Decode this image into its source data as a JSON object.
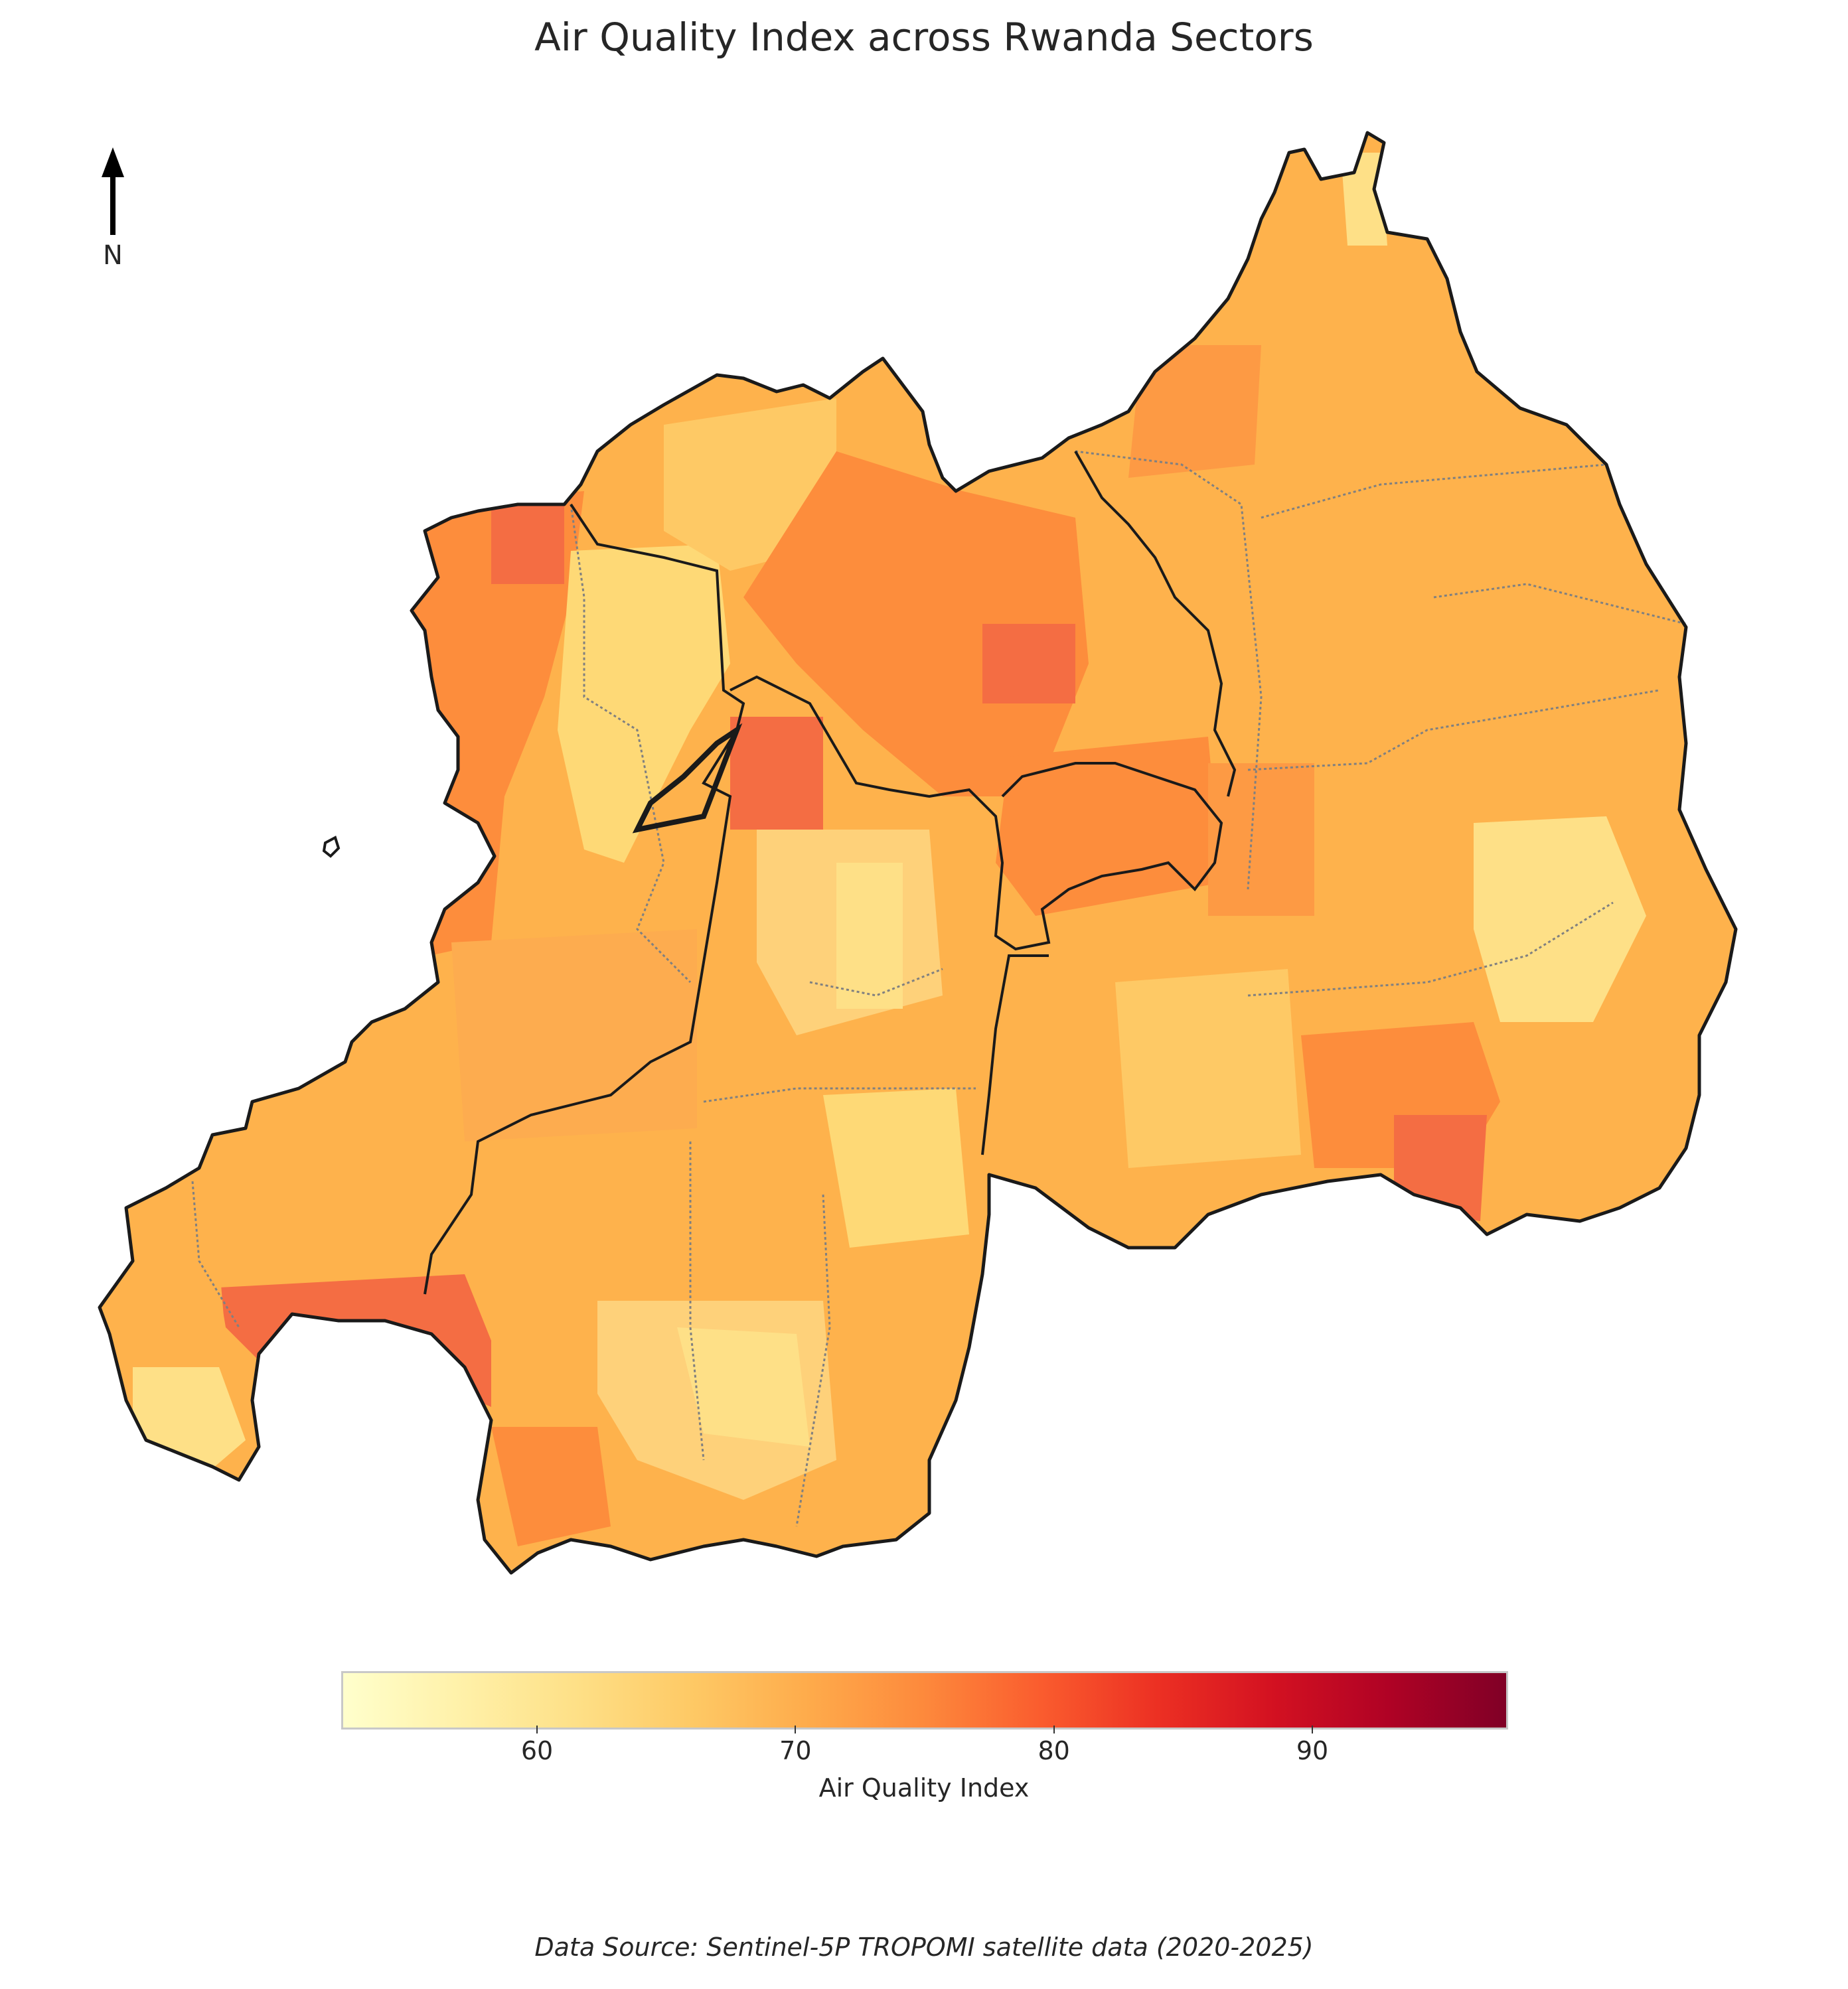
{
  "title": "Air Quality Index across Rwanda Sectors",
  "north_arrow": {
    "label": "N",
    "icon": "north-arrow-icon"
  },
  "colorbar": {
    "label": "Air Quality Index",
    "min": 52.5,
    "max": 97.5,
    "colormap": "YlOrRd",
    "ticks": [
      "60",
      "70",
      "80",
      "90"
    ],
    "tick_values": [
      60,
      70,
      80,
      90
    ]
  },
  "source_note": "Data Source: Sentinel-5P TROPOMI satellite data (2020-2025)",
  "colors": {
    "boundary": "#1a1a1a",
    "district_boundary": "#808080",
    "very_low": "#fee087",
    "low": "#fec965",
    "medium": "#feb24c",
    "high": "#fd8d3c",
    "very_high": "#f46d43"
  }
}
